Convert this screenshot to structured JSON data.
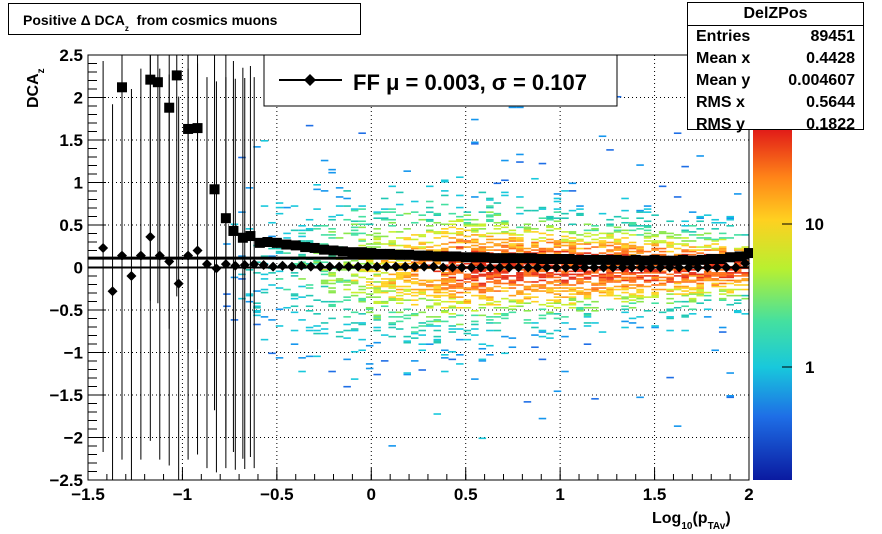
{
  "histogram": {
    "title": "Positive Δ DCA",
    "title_subscript": "z",
    "title_suffix": "from cosmics muons",
    "stats": {
      "name": "DelZPos",
      "rows": [
        {
          "label": "Entries",
          "value": "89451"
        },
        {
          "label": "Mean x",
          "value": "0.4428"
        },
        {
          "label": "Mean y",
          "value": "0.004607"
        },
        {
          "label": "RMS x",
          "value": "0.5644"
        },
        {
          "label": "RMS y",
          "value": "0.1822"
        }
      ]
    },
    "legend_entry": "FF μ =  0.003, σ =   0.107"
  },
  "chart_data": {
    "type": "heatmap",
    "title": "Positive Δ DCA_z from cosmics muons",
    "xlabel": "Log10(pTAv)",
    "ylabel": "DCAz",
    "xlim": [
      -1.5,
      2
    ],
    "ylim": [
      -2.5,
      2.5
    ],
    "x_ticks": [
      "−1.5",
      "−1",
      "−0.5",
      "0",
      "0.5",
      "1",
      "1.5",
      "2"
    ],
    "y_ticks": [
      "−2.5",
      "−2",
      "−1.5",
      "−1",
      "−0.5",
      "0",
      "0.5",
      "1",
      "1.5",
      "2",
      "2.5"
    ],
    "z_scale": "log",
    "z_ticks": [
      "1",
      "10"
    ],
    "grid": true,
    "horizontal_line_y": 0.11,
    "series": [
      {
        "marker": "square",
        "x": [
          -1.32,
          -1.17,
          -1.13,
          -1.07,
          -1.03,
          -0.97,
          -0.92,
          -0.83,
          -0.77,
          -0.73,
          -0.68,
          -0.64,
          -0.59,
          -0.55,
          -0.5,
          -0.45,
          -0.4,
          -0.35,
          -0.3,
          -0.25,
          -0.2,
          -0.15,
          -0.1,
          -0.05,
          0.0,
          0.05,
          0.1,
          0.15,
          0.2,
          0.25,
          0.3,
          0.35,
          0.4,
          0.45,
          0.5,
          0.55,
          0.6,
          0.65,
          0.7,
          0.75,
          0.8,
          0.85,
          0.9,
          0.95,
          1.0,
          1.05,
          1.1,
          1.15,
          1.2,
          1.25,
          1.3,
          1.35,
          1.4,
          1.45,
          1.5,
          1.55,
          1.6,
          1.65,
          1.7,
          1.75,
          1.8,
          1.85,
          1.9,
          1.95,
          2.0
        ],
        "y": [
          2.12,
          2.21,
          2.18,
          1.88,
          2.26,
          1.63,
          1.64,
          0.92,
          0.58,
          0.43,
          0.35,
          0.37,
          0.29,
          0.3,
          0.29,
          0.27,
          0.26,
          0.24,
          0.23,
          0.21,
          0.2,
          0.19,
          0.18,
          0.18,
          0.17,
          0.16,
          0.16,
          0.15,
          0.15,
          0.14,
          0.14,
          0.13,
          0.13,
          0.13,
          0.12,
          0.12,
          0.12,
          0.11,
          0.11,
          0.11,
          0.11,
          0.11,
          0.1,
          0.1,
          0.1,
          0.1,
          0.09,
          0.09,
          0.09,
          0.09,
          0.09,
          0.08,
          0.09,
          0.08,
          0.09,
          0.08,
          0.08,
          0.09,
          0.08,
          0.09,
          0.1,
          0.1,
          0.12,
          0.13,
          0.17
        ]
      },
      {
        "marker": "diamond",
        "x": [
          -1.42,
          -1.37,
          -1.32,
          -1.27,
          -1.22,
          -1.17,
          -1.12,
          -1.07,
          -1.02,
          -0.97,
          -0.92,
          -0.87,
          -0.82,
          -0.77,
          -0.72,
          -0.67,
          -0.62,
          -0.57,
          -0.52,
          -0.47,
          -0.42,
          -0.37,
          -0.32,
          -0.27,
          -0.22,
          -0.17,
          -0.12,
          -0.07,
          -0.02,
          0.03,
          0.08,
          0.13,
          0.18,
          0.23,
          0.28,
          0.33,
          0.38,
          0.43,
          0.48,
          0.53,
          0.58,
          0.63,
          0.68,
          0.73,
          0.78,
          0.83,
          0.88,
          0.93,
          0.98,
          1.03,
          1.08,
          1.13,
          1.18,
          1.23,
          1.28,
          1.33,
          1.38,
          1.43,
          1.48,
          1.53,
          1.58,
          1.63,
          1.68,
          1.73,
          1.78,
          1.83,
          1.88,
          1.93,
          1.98
        ],
        "y": [
          0.23,
          -0.28,
          0.14,
          -0.1,
          0.14,
          0.36,
          0.14,
          0.07,
          -0.19,
          0.14,
          0.2,
          0.04,
          -0.01,
          0.04,
          0.02,
          0.03,
          0.04,
          0.03,
          0.01,
          0.02,
          0.01,
          0.02,
          0.01,
          0.01,
          0.01,
          0.01,
          0.01,
          0.01,
          0.01,
          0.01,
          0.01,
          0.01,
          0.01,
          0.01,
          0.01,
          0.01,
          0.0,
          0.0,
          0.0,
          0.0,
          0.0,
          0.0,
          0.0,
          0.0,
          0.0,
          0.0,
          0.0,
          0.0,
          0.0,
          0.0,
          0.0,
          0.0,
          0.0,
          0.0,
          0.0,
          0.0,
          0.0,
          0.0,
          0.0,
          0.0,
          0.0,
          0.0,
          0.0,
          0.0,
          0.0,
          0.0,
          0.0,
          0.0,
          0.05
        ]
      }
    ]
  }
}
